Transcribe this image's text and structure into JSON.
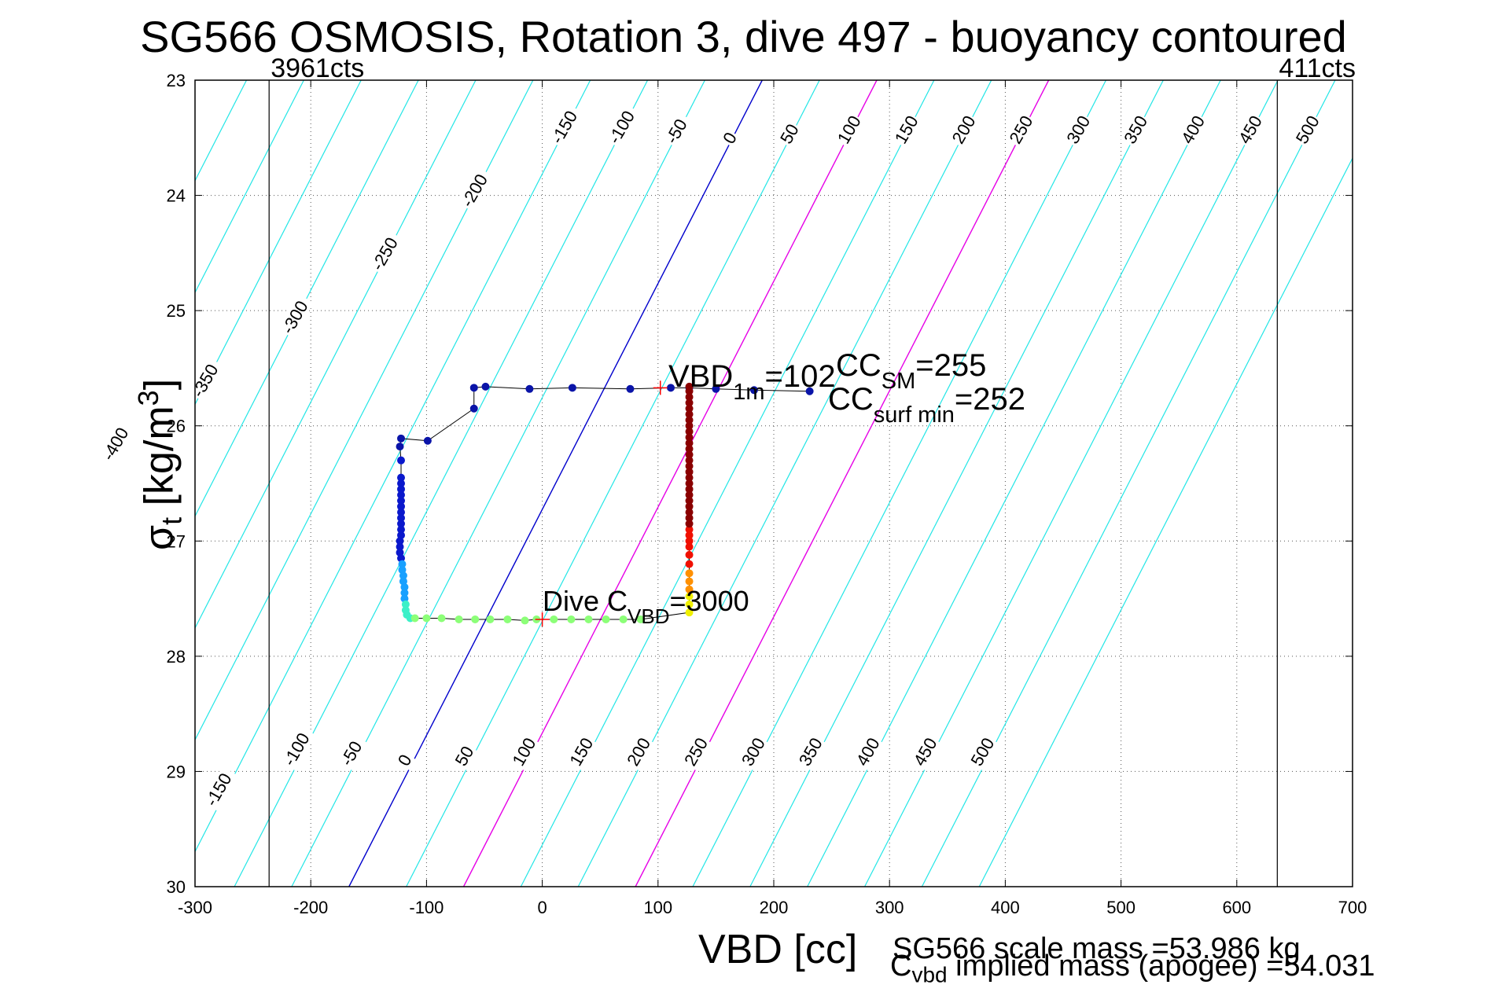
{
  "title": "SG566 OSMOSIS, Rotation 3, dive 497 - buoyancy contoured",
  "xlabel": "VBD [cc]",
  "ylabel": {
    "main": "σ",
    "sub": "t",
    "unit": " [kg/m",
    "sup": "3",
    "close": "]"
  },
  "footer": {
    "scale_mass": "SG566 scale mass =53.986 kg",
    "implied_c": "C",
    "implied_sub": "vbd",
    "implied_rest": " implied mass (apogee) =54.031"
  },
  "chart_data": {
    "type": "scatter",
    "xlim": [
      -300,
      700
    ],
    "ylim": [
      23,
      30
    ],
    "y_reversed": true,
    "grid": true,
    "xticks": [
      "-300",
      "-200",
      "-100",
      "0",
      "100",
      "200",
      "300",
      "400",
      "500",
      "600",
      "700"
    ],
    "yticks": [
      "23",
      "24",
      "25",
      "26",
      "27",
      "28",
      "29",
      "30"
    ],
    "vlines": [
      {
        "x": -236,
        "label": "3961cts"
      },
      {
        "x": 635,
        "label": "411cts"
      }
    ],
    "contours": {
      "levels": [
        -450,
        -400,
        -350,
        -300,
        -250,
        -200,
        -150,
        -100,
        -50,
        0,
        50,
        100,
        150,
        200,
        250,
        300,
        350,
        400,
        450,
        500,
        550
      ],
      "zero_x_at_30": -167,
      "zero_x_at_23": 190,
      "spacing_cc": 49.5,
      "colors": {
        "default": "#22e6e6",
        "zero": "#0000cc",
        "highlight": "#e600e6"
      },
      "highlight_levels": [
        100,
        250
      ],
      "top_labels": [
        "-400",
        "-350",
        "-300",
        "-250",
        "-200",
        "-150",
        "-100",
        "-50",
        "0",
        "50",
        "100",
        "150",
        "200",
        "250",
        "300",
        "350",
        "400",
        "450",
        "500"
      ],
      "bottom_labels": [
        "-150",
        "-100",
        "-50",
        "0",
        "50",
        "100",
        "150",
        "200",
        "250",
        "300",
        "350",
        "400",
        "450",
        "500"
      ]
    },
    "annotations": {
      "vbd1m": {
        "text": "VBD",
        "sub": "1m",
        "value": "=102"
      },
      "ccsm": {
        "text": "CC",
        "sub": "SM",
        "value": "=255"
      },
      "ccsurf": {
        "text": "CC",
        "sub": "surf min",
        "value": "=252"
      },
      "dive": {
        "text": "Dive C",
        "sub": "VBD",
        "value": "=3000"
      }
    },
    "series": [
      {
        "marker_color": "#0a14a8",
        "points": [
          [
            231,
            25.7
          ],
          [
            183,
            25.69
          ],
          [
            150,
            25.68
          ],
          [
            127,
            25.67
          ],
          [
            111,
            25.67
          ],
          [
            76,
            25.68
          ],
          [
            26,
            25.67
          ],
          [
            -11,
            25.68
          ],
          [
            -49,
            25.66
          ],
          [
            -59,
            25.67
          ],
          [
            -59,
            25.85
          ],
          [
            -99,
            26.13
          ],
          [
            -122,
            26.11
          ],
          [
            -123,
            26.18
          ]
        ]
      },
      {
        "marker_color": "#0a18cc",
        "points": [
          [
            -122,
            26.3
          ],
          [
            -122,
            26.45
          ],
          [
            -122,
            26.5
          ],
          [
            -122,
            26.55
          ],
          [
            -122,
            26.6
          ],
          [
            -122,
            26.65
          ],
          [
            -122,
            26.7
          ],
          [
            -122,
            26.75
          ],
          [
            -122,
            26.8
          ],
          [
            -122,
            26.85
          ],
          [
            -122,
            26.9
          ],
          [
            -122,
            26.95
          ],
          [
            -123,
            27.0
          ],
          [
            -123,
            27.05
          ],
          [
            -123,
            27.1
          ],
          [
            -122,
            27.15
          ]
        ]
      },
      {
        "marker_color": "#18a0ff",
        "points": [
          [
            -121,
            27.2
          ],
          [
            -121,
            27.25
          ],
          [
            -120,
            27.3
          ],
          [
            -120,
            27.35
          ],
          [
            -119,
            27.4
          ],
          [
            -119,
            27.45
          ],
          [
            -119,
            27.5
          ]
        ]
      },
      {
        "marker_color": "#3cf0c8",
        "points": [
          [
            -118,
            27.55
          ],
          [
            -118,
            27.6
          ],
          [
            -117,
            27.64
          ],
          [
            -114,
            27.67
          ]
        ]
      },
      {
        "marker_color": "#8cff78",
        "points": [
          [
            -110,
            27.67
          ],
          [
            -100,
            27.67
          ],
          [
            -87,
            27.67
          ],
          [
            -72,
            27.68
          ],
          [
            -58,
            27.68
          ],
          [
            -45,
            27.68
          ],
          [
            -30,
            27.68
          ],
          [
            -15,
            27.69
          ],
          [
            -5,
            27.68
          ],
          [
            10,
            27.68
          ],
          [
            25,
            27.68
          ],
          [
            40,
            27.68
          ],
          [
            55,
            27.68
          ],
          [
            70,
            27.68
          ],
          [
            85,
            27.68
          ]
        ]
      },
      {
        "marker_color": "#f0f000",
        "points": [
          [
            127,
            27.62
          ],
          [
            127,
            27.55
          ],
          [
            127,
            27.48
          ]
        ]
      },
      {
        "marker_color": "#ff9000",
        "points": [
          [
            127,
            27.42
          ],
          [
            127,
            27.35
          ],
          [
            127,
            27.28
          ]
        ]
      },
      {
        "marker_color": "#f01000",
        "points": [
          [
            127,
            27.2
          ],
          [
            127,
            27.12
          ],
          [
            127,
            27.05
          ],
          [
            127,
            27.0
          ],
          [
            127,
            26.95
          ],
          [
            127,
            26.9
          ]
        ]
      },
      {
        "marker_color": "#8a0000",
        "points": [
          [
            127,
            26.85
          ],
          [
            127,
            26.8
          ],
          [
            127,
            26.75
          ],
          [
            127,
            26.7
          ],
          [
            127,
            26.65
          ],
          [
            127,
            26.6
          ],
          [
            127,
            26.55
          ],
          [
            127,
            26.5
          ],
          [
            127,
            26.45
          ],
          [
            127,
            26.4
          ],
          [
            127,
            26.35
          ],
          [
            127,
            26.3
          ],
          [
            127,
            26.25
          ],
          [
            127,
            26.2
          ],
          [
            127,
            26.15
          ],
          [
            127,
            26.1
          ],
          [
            127,
            26.05
          ],
          [
            127,
            26.0
          ],
          [
            127,
            25.95
          ],
          [
            127,
            25.9
          ],
          [
            127,
            25.85
          ],
          [
            127,
            25.8
          ],
          [
            127,
            25.75
          ],
          [
            127,
            25.7
          ],
          [
            127,
            25.66
          ]
        ]
      }
    ]
  }
}
